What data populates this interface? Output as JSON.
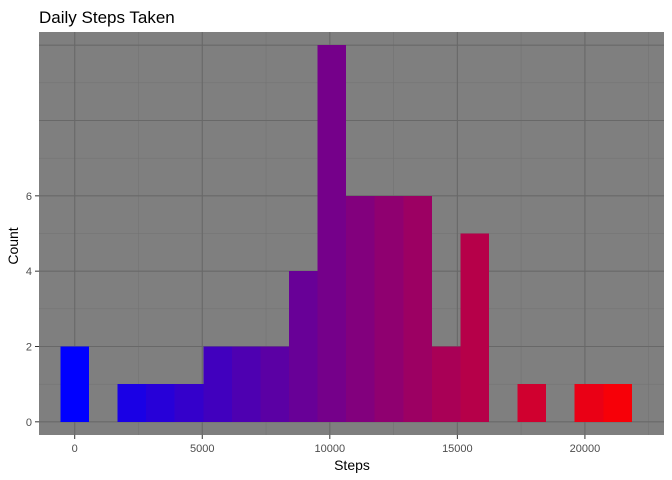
{
  "chart_data": {
    "type": "bar",
    "title": "Daily Steps Taken",
    "xlabel": "Steps",
    "ylabel": "Count",
    "xlim": [
      -1400,
      23100
    ],
    "ylim": [
      -0.35,
      10.35
    ],
    "x_ticks": [
      0,
      5000,
      10000,
      15000,
      20000
    ],
    "x_tick_labels": [
      "0",
      "5000",
      "10000",
      "15000",
      "20000"
    ],
    "y_ticks": [
      0,
      2,
      4,
      6
    ],
    "y_tick_labels": [
      "0",
      "2",
      "4",
      "6"
    ],
    "bin_width": 1120,
    "bins": [
      {
        "x": 0,
        "count": 2
      },
      {
        "x": 2240,
        "count": 1
      },
      {
        "x": 3360,
        "count": 1
      },
      {
        "x": 4480,
        "count": 1
      },
      {
        "x": 5600,
        "count": 2
      },
      {
        "x": 6720,
        "count": 2
      },
      {
        "x": 7840,
        "count": 2
      },
      {
        "x": 8960,
        "count": 4
      },
      {
        "x": 10080,
        "count": 10
      },
      {
        "x": 11200,
        "count": 6
      },
      {
        "x": 12320,
        "count": 6
      },
      {
        "x": 13440,
        "count": 6
      },
      {
        "x": 14560,
        "count": 2
      },
      {
        "x": 15680,
        "count": 5
      },
      {
        "x": 17920,
        "count": 1
      },
      {
        "x": 20160,
        "count": 1
      },
      {
        "x": 21280,
        "count": 1
      }
    ],
    "fill_gradient": {
      "low": "#0000ff",
      "high": "#ff0000",
      "low_count": 0,
      "high_count": 22
    }
  },
  "colors": {
    "panel_background": "#7f7f7f",
    "grid_major": "#686868",
    "grid_minor": "#737373",
    "tick_label": "#4d4d4d"
  },
  "grid": true,
  "legend": "none"
}
